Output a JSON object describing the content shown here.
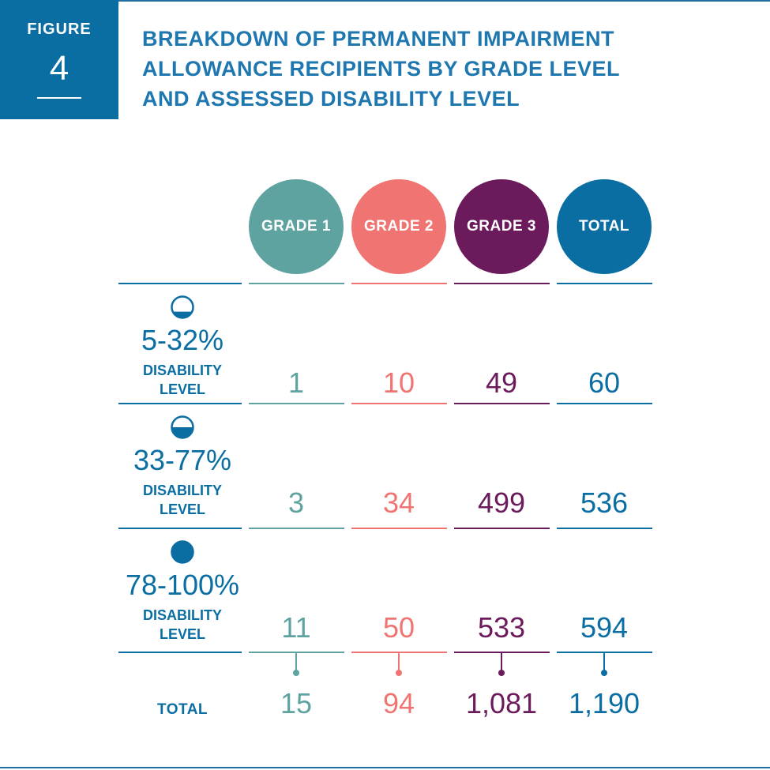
{
  "figure": {
    "label": "FIGURE",
    "number": "4"
  },
  "title_lines": [
    "BREAKDOWN OF PERMANENT IMPAIRMENT",
    "ALLOWANCE RECIPIENTS BY GRADE LEVEL",
    "AND ASSESSED DISABILITY LEVEL"
  ],
  "colors": {
    "grade1": "#5fa3a1",
    "grade2": "#f07572",
    "grade3": "#6b1a5c",
    "total": "#0b6ea3",
    "brand": "#1f77b0"
  },
  "chart_data": {
    "type": "table",
    "title": "BREAKDOWN OF PERMANENT IMPAIRMENT ALLOWANCE RECIPIENTS BY GRADE LEVEL AND ASSESSED DISABILITY LEVEL",
    "columns": [
      "GRADE 1",
      "GRADE 2",
      "GRADE 3",
      "TOTAL"
    ],
    "rows": [
      {
        "range": "5-32%",
        "label_lines": [
          "DISABILITY",
          "LEVEL"
        ],
        "icon": "quarter-filled-circle-icon",
        "values": [
          "1",
          "10",
          "49",
          "60"
        ]
      },
      {
        "range": "33-77%",
        "label_lines": [
          "DISABILITY",
          "LEVEL"
        ],
        "icon": "half-filled-circle-icon",
        "values": [
          "3",
          "34",
          "499",
          "536"
        ]
      },
      {
        "range": "78-100%",
        "label_lines": [
          "DISABILITY",
          "LEVEL"
        ],
        "icon": "full-filled-circle-icon",
        "values": [
          "11",
          "50",
          "533",
          "594"
        ]
      }
    ],
    "total_row": {
      "label": "TOTAL",
      "values": [
        "15",
        "94",
        "1,081",
        "1,190"
      ]
    }
  }
}
